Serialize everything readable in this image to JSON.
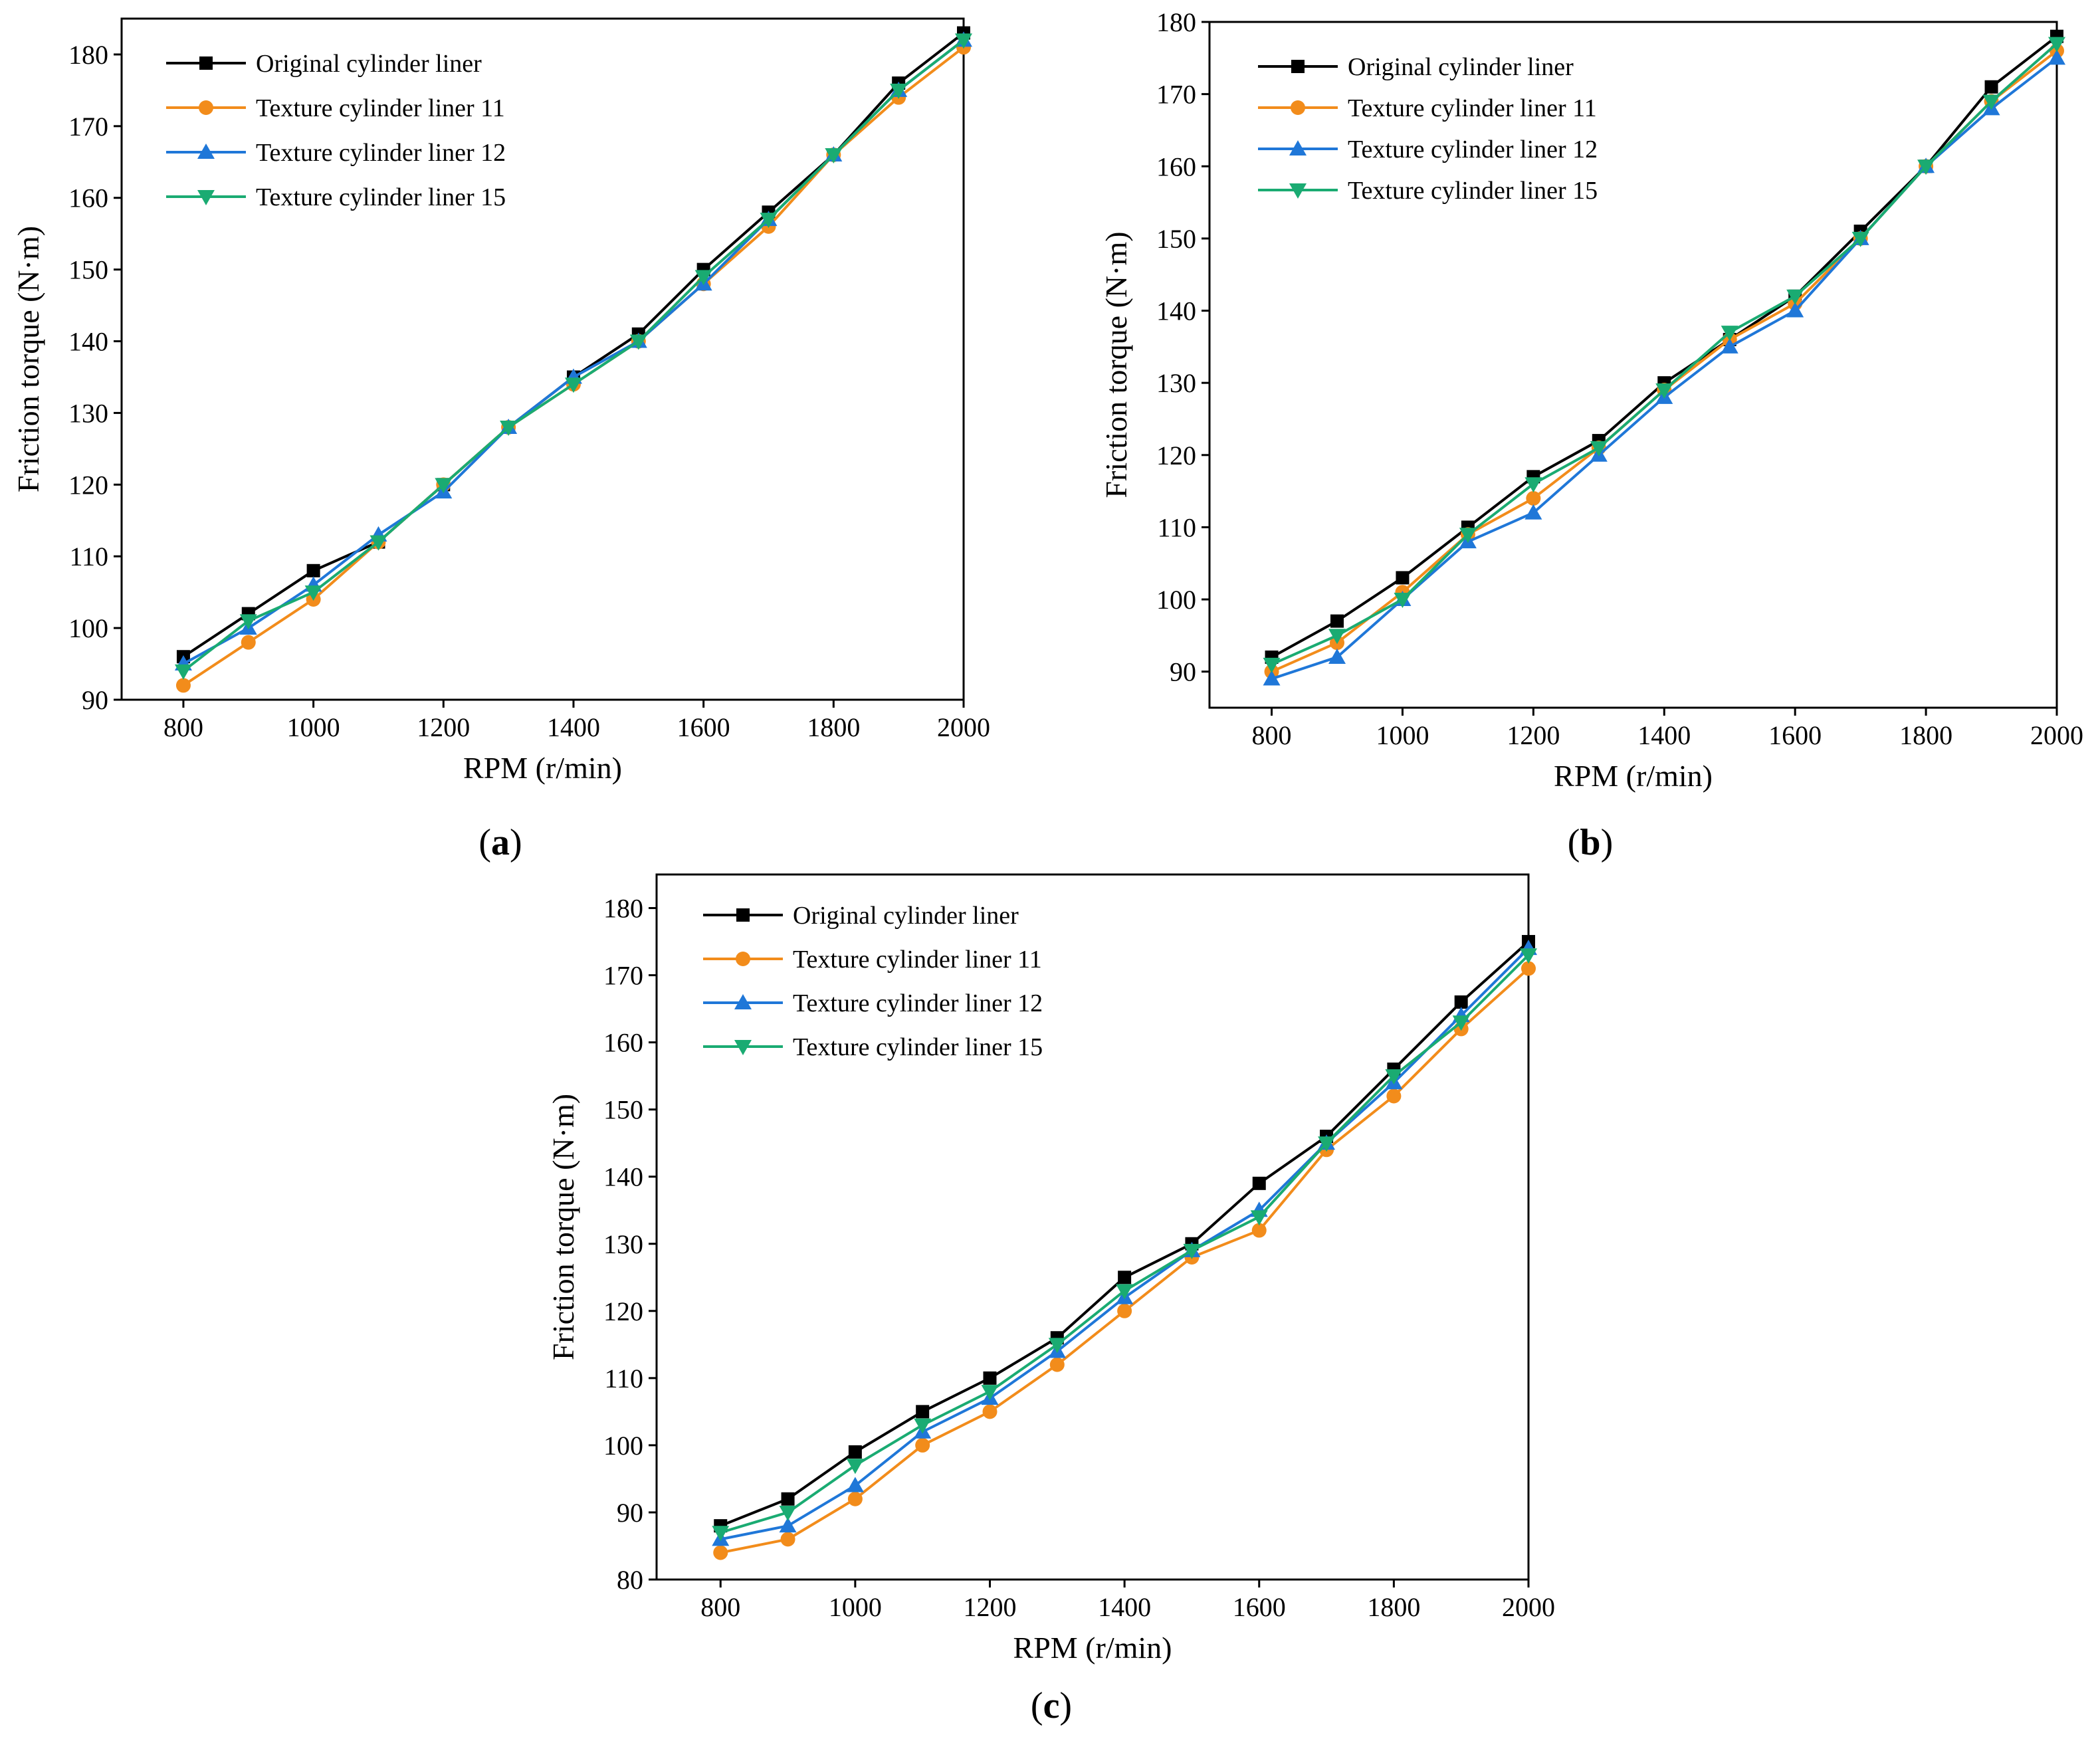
{
  "chart_data": [
    {
      "panel": "a",
      "caption_letter": "a",
      "type": "line",
      "xlabel": "RPM (r/min)",
      "ylabel": "Friction torque (N·m)",
      "xlim": [
        705,
        2000
      ],
      "ylim": [
        90,
        185
      ],
      "xticks": [
        800,
        1000,
        1200,
        1400,
        1600,
        1800,
        2000
      ],
      "yticks": [
        90,
        100,
        110,
        120,
        130,
        140,
        150,
        160,
        170,
        180
      ],
      "x": [
        800,
        900,
        1000,
        1100,
        1200,
        1300,
        1400,
        1500,
        1600,
        1700,
        1800,
        1900,
        2000
      ],
      "legend_position": "top-left",
      "series": [
        {
          "name": "Original cylinder liner",
          "color": "#000000",
          "marker": "square",
          "values": [
            96,
            102,
            108,
            112,
            120,
            128,
            135,
            141,
            150,
            158,
            166,
            176,
            183
          ]
        },
        {
          "name": "Texture cylinder liner 11",
          "color": "#f28c1b",
          "marker": "circle",
          "values": [
            92,
            98,
            104,
            112,
            120,
            128,
            134,
            140,
            148,
            156,
            166,
            174,
            181
          ]
        },
        {
          "name": "Texture cylinder liner 12",
          "color": "#1f77d8",
          "marker": "triangle-up",
          "values": [
            95,
            100,
            106,
            113,
            119,
            128,
            135,
            140,
            148,
            157,
            166,
            175,
            182
          ]
        },
        {
          "name": "Texture cylinder liner 15",
          "color": "#1aab72",
          "marker": "triangle-down",
          "values": [
            94,
            101,
            105,
            112,
            120,
            128,
            134,
            140,
            149,
            157,
            166,
            175,
            182
          ]
        }
      ]
    },
    {
      "panel": "b",
      "caption_letter": "b",
      "type": "line",
      "xlabel": "RPM (r/min)",
      "ylabel": "Friction torque (N·m)",
      "xlim": [
        705,
        2000
      ],
      "ylim": [
        85,
        180
      ],
      "xticks": [
        800,
        1000,
        1200,
        1400,
        1600,
        1800,
        2000
      ],
      "yticks": [
        90,
        100,
        110,
        120,
        130,
        140,
        150,
        160,
        170,
        180
      ],
      "x": [
        800,
        900,
        1000,
        1100,
        1200,
        1300,
        1400,
        1500,
        1600,
        1700,
        1800,
        1900,
        2000
      ],
      "legend_position": "top-left",
      "series": [
        {
          "name": "Original cylinder liner",
          "color": "#000000",
          "marker": "square",
          "values": [
            92,
            97,
            103,
            110,
            117,
            122,
            130,
            136,
            142,
            151,
            160,
            171,
            178
          ]
        },
        {
          "name": "Texture cylinder liner 11",
          "color": "#f28c1b",
          "marker": "circle",
          "values": [
            90,
            94,
            101,
            109,
            114,
            121,
            129,
            136,
            141,
            150,
            160,
            169,
            176
          ]
        },
        {
          "name": "Texture cylinder liner 12",
          "color": "#1f77d8",
          "marker": "triangle-up",
          "values": [
            89,
            92,
            100,
            108,
            112,
            120,
            128,
            135,
            140,
            150,
            160,
            168,
            175
          ]
        },
        {
          "name": "Texture cylinder liner 15",
          "color": "#1aab72",
          "marker": "triangle-down",
          "values": [
            91,
            95,
            100,
            109,
            116,
            121,
            129,
            137,
            142,
            150,
            160,
            169,
            177
          ]
        }
      ]
    },
    {
      "panel": "c",
      "caption_letter": "c",
      "type": "line",
      "xlabel": "RPM (r/min)",
      "ylabel": "Friction torque (N·m)",
      "xlim": [
        705,
        2000
      ],
      "ylim": [
        80,
        185
      ],
      "xticks": [
        800,
        1000,
        1200,
        1400,
        1600,
        1800,
        2000
      ],
      "yticks": [
        80,
        90,
        100,
        110,
        120,
        130,
        140,
        150,
        160,
        170,
        180
      ],
      "x": [
        800,
        900,
        1000,
        1100,
        1200,
        1300,
        1400,
        1500,
        1600,
        1700,
        1800,
        1900,
        2000
      ],
      "legend_position": "top-left",
      "series": [
        {
          "name": "Original cylinder liner",
          "color": "#000000",
          "marker": "square",
          "values": [
            88,
            92,
            99,
            105,
            110,
            116,
            125,
            130,
            139,
            146,
            156,
            166,
            175
          ]
        },
        {
          "name": "Texture cylinder liner 11",
          "color": "#f28c1b",
          "marker": "circle",
          "values": [
            84,
            86,
            92,
            100,
            105,
            112,
            120,
            128,
            132,
            144,
            152,
            162,
            171
          ]
        },
        {
          "name": "Texture cylinder liner 12",
          "color": "#1f77d8",
          "marker": "triangle-up",
          "values": [
            86,
            88,
            94,
            102,
            107,
            114,
            122,
            129,
            135,
            145,
            154,
            164,
            174
          ]
        },
        {
          "name": "Texture cylinder liner 15",
          "color": "#1aab72",
          "marker": "triangle-down",
          "values": [
            87,
            90,
            97,
            103,
            108,
            115,
            123,
            129,
            134,
            145,
            155,
            163,
            173
          ]
        }
      ]
    }
  ]
}
